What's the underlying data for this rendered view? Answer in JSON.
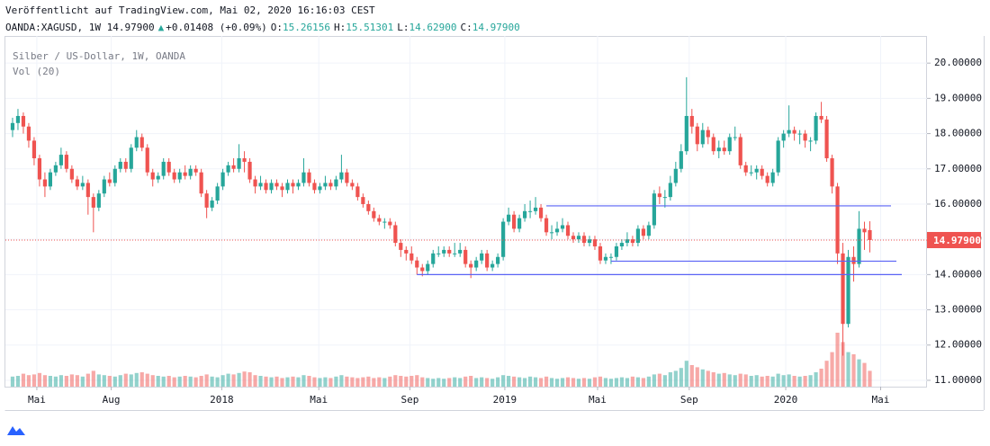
{
  "header": {
    "published": "Veröffentlicht auf TradingView.com, Mai 02, 2020 16:16:03 CEST",
    "symbol": "OANDA:XAGUSD, 1W 14.97900",
    "arrow": "▲",
    "change": "+0.01408 (+0.09%)",
    "ohlc": [
      {
        "label": "O:",
        "value": "15.26156"
      },
      {
        "label": "H:",
        "value": "15.51301"
      },
      {
        "label": "L:",
        "value": "14.62900"
      },
      {
        "label": "C:",
        "value": "14.97900"
      }
    ]
  },
  "chart_data": {
    "type": "candlestick",
    "title": "Silber / US-Dollar, 1W, OANDA",
    "volume_label": "Vol (20)",
    "last_price_label": "14.97900",
    "last_price": 14.979,
    "up_color": "#26a69a",
    "down_color": "#ef5350",
    "line_color": "#5a63f5",
    "grid": true,
    "ylim": [
      10.82,
      20.77
    ],
    "xlim": [
      -1.33,
      169.6
    ],
    "yticks": [
      {
        "value": 11,
        "label": "11.00000"
      },
      {
        "value": 12,
        "label": "12.00000"
      },
      {
        "value": 13,
        "label": "13.00000"
      },
      {
        "value": 14,
        "label": "14.00000"
      },
      {
        "value": 15,
        "label": "15.00000"
      },
      {
        "value": 16,
        "label": "16.00000"
      },
      {
        "value": 17,
        "label": "17.00000"
      },
      {
        "value": 18,
        "label": "18.00000"
      },
      {
        "value": 19,
        "label": "19.00000"
      },
      {
        "value": 20,
        "label": "20.00000"
      }
    ],
    "xticks": [
      {
        "value": 4.5,
        "label": "Mai"
      },
      {
        "value": 18.3,
        "label": "Aug"
      },
      {
        "value": 38.8,
        "label": "2018"
      },
      {
        "value": 56.8,
        "label": "Mai"
      },
      {
        "value": 73.7,
        "label": "Sep"
      },
      {
        "value": 91.3,
        "label": "2019"
      },
      {
        "value": 108.5,
        "label": "Mai"
      },
      {
        "value": 125.5,
        "label": "Sep"
      },
      {
        "value": 143.4,
        "label": "2020"
      },
      {
        "value": 161,
        "label": "Mai"
      }
    ],
    "hlines": [
      {
        "value": 15.95,
        "from": 99
      },
      {
        "value": 14.38,
        "from": 111
      },
      {
        "value": 14.0,
        "from": 75
      }
    ],
    "candles": [
      [
        18.1,
        18.45,
        17.9,
        18.3
      ],
      [
        18.3,
        18.7,
        18.1,
        18.5
      ],
      [
        18.5,
        18.6,
        18.0,
        18.2
      ],
      [
        18.2,
        18.3,
        17.6,
        17.8
      ],
      [
        17.8,
        17.9,
        17.1,
        17.3
      ],
      [
        17.3,
        17.4,
        16.5,
        16.7
      ],
      [
        16.7,
        16.9,
        16.2,
        16.5
      ],
      [
        16.5,
        17.0,
        16.4,
        16.9
      ],
      [
        16.9,
        17.2,
        16.8,
        17.1
      ],
      [
        17.1,
        17.6,
        17.0,
        17.4
      ],
      [
        17.4,
        17.5,
        16.9,
        17.0
      ],
      [
        17.0,
        17.1,
        16.6,
        16.7
      ],
      [
        16.7,
        16.8,
        16.4,
        16.5
      ],
      [
        16.5,
        16.8,
        16.4,
        16.6
      ],
      [
        16.6,
        16.7,
        15.7,
        16.2
      ],
      [
        16.2,
        16.3,
        15.2,
        15.9
      ],
      [
        15.9,
        16.4,
        15.8,
        16.3
      ],
      [
        16.3,
        16.8,
        16.2,
        16.7
      ],
      [
        16.7,
        16.9,
        16.5,
        16.6
      ],
      [
        16.6,
        17.1,
        16.5,
        17.0
      ],
      [
        17.0,
        17.3,
        16.9,
        17.2
      ],
      [
        17.2,
        17.3,
        16.9,
        17.0
      ],
      [
        17.0,
        17.7,
        16.9,
        17.6
      ],
      [
        17.6,
        18.1,
        17.5,
        17.9
      ],
      [
        17.9,
        18.0,
        17.5,
        17.6
      ],
      [
        17.6,
        17.7,
        16.8,
        16.9
      ],
      [
        16.9,
        17.0,
        16.5,
        16.7
      ],
      [
        16.7,
        16.9,
        16.6,
        16.8
      ],
      [
        16.8,
        17.3,
        16.7,
        17.2
      ],
      [
        17.2,
        17.3,
        16.8,
        16.9
      ],
      [
        16.9,
        17.0,
        16.6,
        16.7
      ],
      [
        16.7,
        17.0,
        16.6,
        16.9
      ],
      [
        16.9,
        17.1,
        16.7,
        16.8
      ],
      [
        16.8,
        17.1,
        16.7,
        17.0
      ],
      [
        17.0,
        17.1,
        16.8,
        16.9
      ],
      [
        16.9,
        17.0,
        16.2,
        16.3
      ],
      [
        16.3,
        16.4,
        15.6,
        15.9
      ],
      [
        15.9,
        16.2,
        15.8,
        16.1
      ],
      [
        16.1,
        16.6,
        16.0,
        16.5
      ],
      [
        16.5,
        17.0,
        16.4,
        16.9
      ],
      [
        16.9,
        17.2,
        16.8,
        17.1
      ],
      [
        17.1,
        17.3,
        16.9,
        17.0
      ],
      [
        17.0,
        17.7,
        16.9,
        17.3
      ],
      [
        17.3,
        17.5,
        16.9,
        17.2
      ],
      [
        17.2,
        17.3,
        16.6,
        16.7
      ],
      [
        16.7,
        16.8,
        16.3,
        16.5
      ],
      [
        16.5,
        16.8,
        16.4,
        16.6
      ],
      [
        16.6,
        16.7,
        16.3,
        16.4
      ],
      [
        16.4,
        16.7,
        16.3,
        16.6
      ],
      [
        16.6,
        16.7,
        16.4,
        16.5
      ],
      [
        16.5,
        16.6,
        16.2,
        16.4
      ],
      [
        16.4,
        16.7,
        16.3,
        16.6
      ],
      [
        16.6,
        16.7,
        16.3,
        16.5
      ],
      [
        16.5,
        16.7,
        16.4,
        16.6
      ],
      [
        16.6,
        17.3,
        16.5,
        16.9
      ],
      [
        16.9,
        17.0,
        16.5,
        16.6
      ],
      [
        16.6,
        16.7,
        16.3,
        16.4
      ],
      [
        16.4,
        16.6,
        16.3,
        16.5
      ],
      [
        16.5,
        16.8,
        16.4,
        16.6
      ],
      [
        16.6,
        16.7,
        16.4,
        16.5
      ],
      [
        16.5,
        16.8,
        16.4,
        16.7
      ],
      [
        16.7,
        17.4,
        16.6,
        16.9
      ],
      [
        16.9,
        17.0,
        16.5,
        16.6
      ],
      [
        16.6,
        16.7,
        16.4,
        16.5
      ],
      [
        16.5,
        16.6,
        16.1,
        16.2
      ],
      [
        16.2,
        16.3,
        15.9,
        16.0
      ],
      [
        16.0,
        16.1,
        15.7,
        15.8
      ],
      [
        15.8,
        15.9,
        15.5,
        15.6
      ],
      [
        15.6,
        15.7,
        15.4,
        15.5
      ],
      [
        15.5,
        15.6,
        15.3,
        15.5
      ],
      [
        15.5,
        15.6,
        15.3,
        15.4
      ],
      [
        15.4,
        15.5,
        14.8,
        14.9
      ],
      [
        14.9,
        15.0,
        14.5,
        14.7
      ],
      [
        14.7,
        14.8,
        14.4,
        14.6
      ],
      [
        14.6,
        14.8,
        14.3,
        14.4
      ],
      [
        14.4,
        14.5,
        14.0,
        14.2
      ],
      [
        14.2,
        14.3,
        13.95,
        14.1
      ],
      [
        14.1,
        14.4,
        14.0,
        14.3
      ],
      [
        14.3,
        14.7,
        14.2,
        14.6
      ],
      [
        14.6,
        14.8,
        14.5,
        14.6
      ],
      [
        14.6,
        14.8,
        14.5,
        14.7
      ],
      [
        14.7,
        14.8,
        14.5,
        14.6
      ],
      [
        14.6,
        14.9,
        14.5,
        14.6
      ],
      [
        14.6,
        14.9,
        14.5,
        14.7
      ],
      [
        14.7,
        14.8,
        14.2,
        14.3
      ],
      [
        14.3,
        14.4,
        13.9,
        14.2
      ],
      [
        14.2,
        14.5,
        14.1,
        14.4
      ],
      [
        14.4,
        14.7,
        14.3,
        14.6
      ],
      [
        14.6,
        14.7,
        14.1,
        14.2
      ],
      [
        14.2,
        14.4,
        14.1,
        14.3
      ],
      [
        14.3,
        14.6,
        14.2,
        14.5
      ],
      [
        14.5,
        15.6,
        14.4,
        15.5
      ],
      [
        15.5,
        15.9,
        15.4,
        15.7
      ],
      [
        15.7,
        15.8,
        15.2,
        15.3
      ],
      [
        15.3,
        15.7,
        15.2,
        15.6
      ],
      [
        15.6,
        16.0,
        15.5,
        15.8
      ],
      [
        15.8,
        16.1,
        15.6,
        15.8
      ],
      [
        15.8,
        16.2,
        15.7,
        15.9
      ],
      [
        15.9,
        16.0,
        15.5,
        15.6
      ],
      [
        15.6,
        15.7,
        15.1,
        15.2
      ],
      [
        15.2,
        15.4,
        15.0,
        15.2
      ],
      [
        15.2,
        15.5,
        15.1,
        15.3
      ],
      [
        15.3,
        15.6,
        15.2,
        15.4
      ],
      [
        15.4,
        15.5,
        15.0,
        15.1
      ],
      [
        15.1,
        15.2,
        14.9,
        15.0
      ],
      [
        15.0,
        15.2,
        14.9,
        15.1
      ],
      [
        15.1,
        15.2,
        14.8,
        14.9
      ],
      [
        14.9,
        15.1,
        14.8,
        15.0
      ],
      [
        15.0,
        15.1,
        14.7,
        14.8
      ],
      [
        14.8,
        14.9,
        14.3,
        14.4
      ],
      [
        14.4,
        14.6,
        14.3,
        14.5
      ],
      [
        14.5,
        14.6,
        14.3,
        14.5
      ],
      [
        14.5,
        14.9,
        14.4,
        14.8
      ],
      [
        14.8,
        15.0,
        14.7,
        14.9
      ],
      [
        14.9,
        15.2,
        14.8,
        15.0
      ],
      [
        15.0,
        15.1,
        14.8,
        14.9
      ],
      [
        14.9,
        15.4,
        14.8,
        15.3
      ],
      [
        15.3,
        15.4,
        15.0,
        15.1
      ],
      [
        15.1,
        15.5,
        15.0,
        15.4
      ],
      [
        15.4,
        16.4,
        15.3,
        16.3
      ],
      [
        16.3,
        16.5,
        16.0,
        16.2
      ],
      [
        16.2,
        16.4,
        15.9,
        16.2
      ],
      [
        16.2,
        16.8,
        16.1,
        16.6
      ],
      [
        16.6,
        17.2,
        16.5,
        17.0
      ],
      [
        17.0,
        17.7,
        16.9,
        17.5
      ],
      [
        17.5,
        19.6,
        17.4,
        18.5
      ],
      [
        18.5,
        18.7,
        18.0,
        18.2
      ],
      [
        18.2,
        18.3,
        17.5,
        17.7
      ],
      [
        17.7,
        18.3,
        17.6,
        18.1
      ],
      [
        18.1,
        18.2,
        17.7,
        17.9
      ],
      [
        17.9,
        18.0,
        17.4,
        17.5
      ],
      [
        17.5,
        17.8,
        17.3,
        17.6
      ],
      [
        17.6,
        17.8,
        17.4,
        17.5
      ],
      [
        17.5,
        18.0,
        17.4,
        17.9
      ],
      [
        17.9,
        18.2,
        17.8,
        17.9
      ],
      [
        17.9,
        18.0,
        17.0,
        17.1
      ],
      [
        17.1,
        17.2,
        16.8,
        16.9
      ],
      [
        16.9,
        17.1,
        16.8,
        16.9
      ],
      [
        16.9,
        17.1,
        16.7,
        17.0
      ],
      [
        17.0,
        17.1,
        16.7,
        16.8
      ],
      [
        16.8,
        16.9,
        16.5,
        16.6
      ],
      [
        16.6,
        17.0,
        16.5,
        16.9
      ],
      [
        16.9,
        17.9,
        16.8,
        17.8
      ],
      [
        17.8,
        18.1,
        17.6,
        18.0
      ],
      [
        18.0,
        18.8,
        17.9,
        18.1
      ],
      [
        18.1,
        18.2,
        17.8,
        18.0
      ],
      [
        18.0,
        18.1,
        17.7,
        18.0
      ],
      [
        18.0,
        18.1,
        17.6,
        17.8
      ],
      [
        17.8,
        17.9,
        17.5,
        17.8
      ],
      [
        17.8,
        18.6,
        17.7,
        18.5
      ],
      [
        18.5,
        18.9,
        18.3,
        18.4
      ],
      [
        18.4,
        18.5,
        17.2,
        17.3
      ],
      [
        17.3,
        17.4,
        16.3,
        16.5
      ],
      [
        16.5,
        16.6,
        14.3,
        14.6
      ],
      [
        14.6,
        14.9,
        11.7,
        12.6
      ],
      [
        12.6,
        14.7,
        12.5,
        14.5
      ],
      [
        14.5,
        14.8,
        13.8,
        14.3
      ],
      [
        14.3,
        15.8,
        14.2,
        15.3
      ],
      [
        15.3,
        15.5,
        14.7,
        15.2
      ],
      [
        15.26156,
        15.51301,
        14.629,
        14.979
      ]
    ],
    "volumes": [
      14,
      15,
      18,
      16,
      17,
      19,
      16,
      15,
      14,
      16,
      15,
      17,
      16,
      14,
      18,
      22,
      17,
      16,
      15,
      14,
      16,
      18,
      17,
      19,
      20,
      18,
      16,
      15,
      14,
      15,
      13,
      14,
      15,
      14,
      13,
      15,
      17,
      14,
      13,
      16,
      18,
      17,
      19,
      21,
      20,
      16,
      15,
      14,
      13,
      14,
      12,
      13,
      14,
      13,
      16,
      15,
      13,
      12,
      13,
      12,
      14,
      16,
      14,
      13,
      12,
      13,
      14,
      12,
      13,
      12,
      14,
      16,
      15,
      14,
      15,
      16,
      13,
      12,
      11,
      12,
      11,
      12,
      13,
      12,
      14,
      15,
      12,
      13,
      12,
      11,
      13,
      16,
      15,
      14,
      13,
      12,
      14,
      13,
      12,
      14,
      12,
      11,
      12,
      13,
      12,
      11,
      12,
      11,
      13,
      14,
      12,
      11,
      12,
      13,
      12,
      14,
      13,
      12,
      14,
      17,
      18,
      16,
      20,
      22,
      26,
      36,
      30,
      27,
      24,
      22,
      20,
      18,
      19,
      17,
      16,
      18,
      17,
      15,
      16,
      14,
      15,
      14,
      18,
      16,
      17,
      15,
      14,
      15,
      16,
      20,
      25,
      36,
      48,
      75,
      62,
      48,
      45,
      38,
      33,
      22
    ]
  }
}
